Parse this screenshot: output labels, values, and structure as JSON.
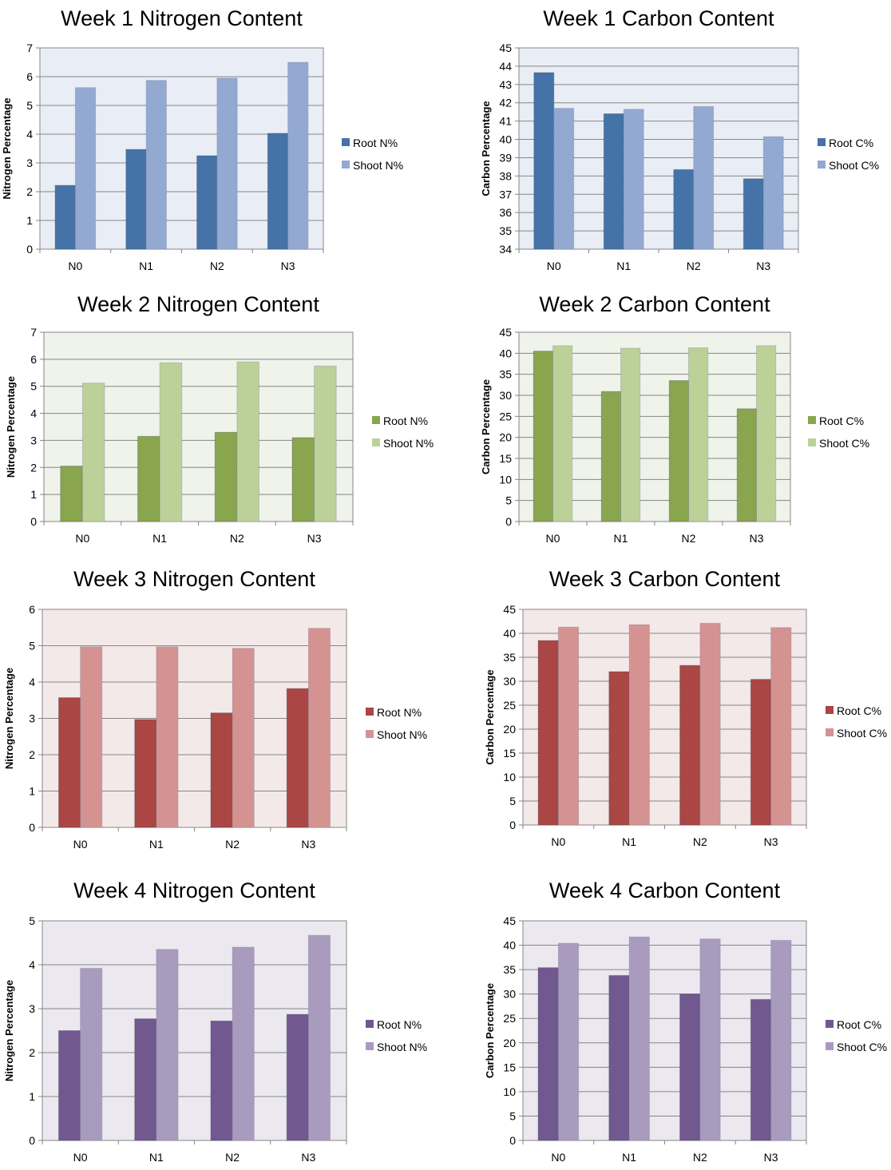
{
  "chart_data": [
    {
      "id": "w1n",
      "type": "bar",
      "title": "Week 1 Nitrogen Content",
      "ylabel": "Nitrogen Percentage",
      "xlabel": "",
      "categories": [
        "N0",
        "N1",
        "N2",
        "N3"
      ],
      "ylim": [
        0,
        7
      ],
      "ytick_step": 1,
      "grid": true,
      "legend_position": "right",
      "plot_bg": "#e9eef6",
      "series": [
        {
          "name": "Root N%",
          "color": "#4572a7",
          "values": [
            2.22,
            3.47,
            3.25,
            4.03
          ]
        },
        {
          "name": "Shoot N%",
          "color": "#93a9d1",
          "values": [
            5.62,
            5.87,
            5.95,
            6.5
          ]
        }
      ]
    },
    {
      "id": "w1c",
      "type": "bar",
      "title": "Week 1 Carbon Content",
      "ylabel": "Carbon Percentage",
      "xlabel": "",
      "categories": [
        "N0",
        "N1",
        "N2",
        "N3"
      ],
      "ylim": [
        34,
        45
      ],
      "ytick_step": 1,
      "grid": true,
      "legend_position": "right",
      "plot_bg": "#e9eef6",
      "series": [
        {
          "name": "Root C%",
          "color": "#4572a7",
          "values": [
            43.65,
            41.4,
            38.35,
            37.85
          ]
        },
        {
          "name": "Shoot C%",
          "color": "#93a9d1",
          "values": [
            41.7,
            41.65,
            41.8,
            40.15
          ]
        }
      ]
    },
    {
      "id": "w2n",
      "type": "bar",
      "title": "Week 2 Nitrogen Content",
      "ylabel": "Nitrogen Percentage",
      "xlabel": "",
      "categories": [
        "N0",
        "N1",
        "N2",
        "N3"
      ],
      "ylim": [
        0,
        7
      ],
      "ytick_step": 1,
      "grid": true,
      "legend_position": "right",
      "plot_bg": "#eff3ea",
      "series": [
        {
          "name": "Root N%",
          "color": "#89a54e",
          "values": [
            2.05,
            3.15,
            3.3,
            3.1
          ]
        },
        {
          "name": "Shoot N%",
          "color": "#bbd198",
          "values": [
            5.12,
            5.87,
            5.9,
            5.75
          ]
        }
      ]
    },
    {
      "id": "w2c",
      "type": "bar",
      "title": "Week 2 Carbon Content",
      "ylabel": "Carbon Percentage",
      "xlabel": "",
      "categories": [
        "N0",
        "N1",
        "N2",
        "N3"
      ],
      "ylim": [
        0,
        45
      ],
      "ytick_step": 5,
      "grid": true,
      "legend_position": "right",
      "plot_bg": "#eff3ea",
      "series": [
        {
          "name": "Root C%",
          "color": "#89a54e",
          "values": [
            40.5,
            30.9,
            33.5,
            26.8
          ]
        },
        {
          "name": "Shoot C%",
          "color": "#bbd198",
          "values": [
            41.8,
            41.2,
            41.3,
            41.8
          ]
        }
      ]
    },
    {
      "id": "w3n",
      "type": "bar",
      "title": "Week 3 Nitrogen Content",
      "ylabel": "Nitrogen Percentage",
      "xlabel": "",
      "categories": [
        "N0",
        "N1",
        "N2",
        "N3"
      ],
      "ylim": [
        0,
        6
      ],
      "ytick_step": 1,
      "grid": true,
      "legend_position": "right",
      "plot_bg": "#f4e9e9",
      "series": [
        {
          "name": "Root N%",
          "color": "#aa4643",
          "values": [
            3.57,
            2.97,
            3.15,
            3.82
          ]
        },
        {
          "name": "Shoot N%",
          "color": "#d49391",
          "values": [
            4.97,
            4.97,
            4.93,
            5.48
          ]
        }
      ]
    },
    {
      "id": "w3c",
      "type": "bar",
      "title": "Week 3 Carbon Content",
      "ylabel": "Carbon Percentage",
      "xlabel": "",
      "categories": [
        "N0",
        "N1",
        "N2",
        "N3"
      ],
      "ylim": [
        0,
        45
      ],
      "ytick_step": 5,
      "grid": true,
      "legend_position": "right",
      "plot_bg": "#f4e9e9",
      "series": [
        {
          "name": "Root C%",
          "color": "#aa4643",
          "values": [
            38.5,
            32.0,
            33.3,
            30.4
          ]
        },
        {
          "name": "Shoot C%",
          "color": "#d49391",
          "values": [
            41.3,
            41.8,
            42.1,
            41.2
          ]
        }
      ]
    },
    {
      "id": "w4n",
      "type": "bar",
      "title": "Week 4 Nitrogen Content",
      "ylabel": "Nitrogen Percentage",
      "xlabel": "",
      "categories": [
        "N0",
        "N1",
        "N2",
        "N3"
      ],
      "ylim": [
        0,
        5
      ],
      "ytick_step": 1,
      "grid": true,
      "legend_position": "right",
      "plot_bg": "#ebe8ef",
      "series": [
        {
          "name": "Root N%",
          "color": "#71588f",
          "values": [
            2.5,
            2.77,
            2.72,
            2.87
          ]
        },
        {
          "name": "Shoot N%",
          "color": "#a99bbd",
          "values": [
            3.92,
            4.35,
            4.4,
            4.67
          ]
        }
      ]
    },
    {
      "id": "w4c",
      "type": "bar",
      "title": "Week 4 Carbon Content",
      "ylabel": "Carbon Percentage",
      "xlabel": "",
      "categories": [
        "N0",
        "N1",
        "N2",
        "N3"
      ],
      "ylim": [
        0,
        45
      ],
      "ytick_step": 5,
      "grid": true,
      "legend_position": "right",
      "plot_bg": "#ebe8ef",
      "series": [
        {
          "name": "Root C%",
          "color": "#71588f",
          "values": [
            35.4,
            33.8,
            30.0,
            28.9
          ]
        },
        {
          "name": "Shoot C%",
          "color": "#a99bbd",
          "values": [
            40.4,
            41.7,
            41.3,
            41.0
          ]
        }
      ]
    }
  ]
}
